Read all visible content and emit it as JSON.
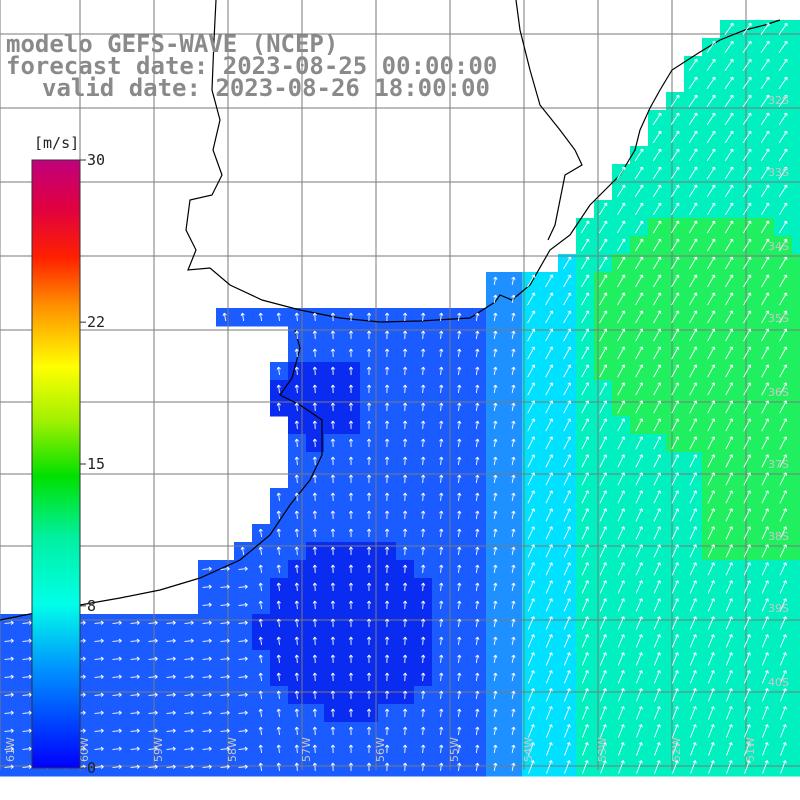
{
  "title": {
    "line1": "modelo GEFS-WAVE (NCEP)",
    "line2": "forecast date: 2023-08-25 00:00:00",
    "line3": "valid date: 2023-08-26 18:00:00"
  },
  "colorbar": {
    "unit": "[m/s]",
    "ticks": [
      "30",
      "22",
      "15",
      "8",
      "0"
    ],
    "tick_values": [
      30,
      22,
      15,
      8,
      0
    ],
    "colors": [
      "#0000ff",
      "#00c8ff",
      "#00ffe0",
      "#00ff80",
      "#00e000",
      "#b0e000",
      "#ffff00",
      "#ff9000",
      "#ff3000",
      "#ff0000",
      "#c80060",
      "#c8008c"
    ]
  },
  "lat_labels": [
    "32S",
    "33S",
    "34S",
    "35S",
    "36S",
    "37S",
    "38S",
    "39S",
    "40S"
  ],
  "lon_labels": [
    "61W",
    "60W",
    "59W",
    "58W",
    "57W",
    "56W",
    "55W",
    "54W",
    "53W",
    "52W",
    "51W"
  ],
  "field_colors": {
    "deep_blue": "#0a2cf0",
    "blue": "#1a5cff",
    "light_blue": "#1e90ff",
    "cyan": "#00e0ff",
    "teal": "#00f0c0",
    "green": "#20f060"
  }
}
